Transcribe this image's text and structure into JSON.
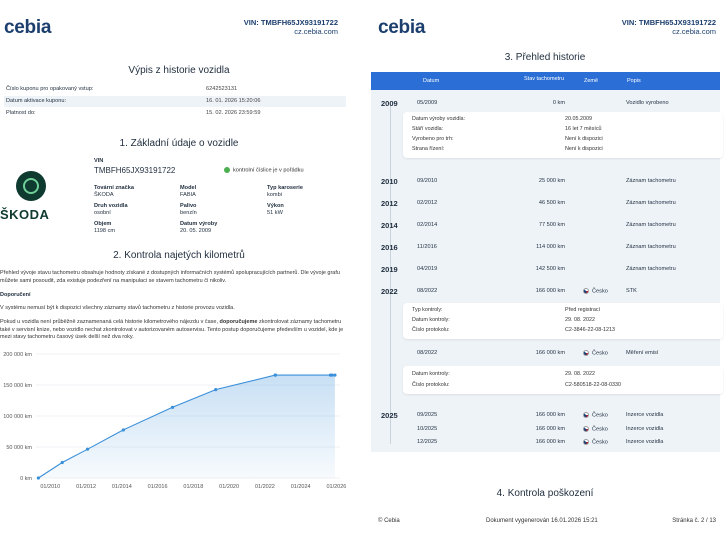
{
  "page1": {
    "logo": "cebia",
    "vin_header": "VIN: TMBFH65JX93191722",
    "url": "cz.cebia.com",
    "title": "Výpis z historie vozidla",
    "info_rows": [
      {
        "label": "Číslo kuponu pro opakovaný vstup:",
        "value": "6242523131"
      },
      {
        "label": "Datum aktivace kuponu:",
        "value": "16. 01. 2026 15:20:06"
      },
      {
        "label": "Platnost do:",
        "value": "15. 02. 2026 23:59:59"
      }
    ],
    "section1_title": "1. Základní údaje o vozidle",
    "vin_label": "VIN",
    "vin_value": "TMBFH65JX93191722",
    "vin_check": "kontrolní číslice je v pořádku",
    "logo_word": "ŠKODA",
    "details": {
      "brand_label": "Tovární značka",
      "brand": "ŠKODA",
      "model_label": "Model",
      "model": "FABIA",
      "body_label": "Typ karoserie",
      "body": "kombi",
      "kind_label": "Druh vozidla",
      "kind": "osobní",
      "fuel_label": "Palivo",
      "fuel": "benzín",
      "power_label": "Výkon",
      "power": "51 kW",
      "volume_label": "Objem",
      "volume": "1198 cm",
      "made_label": "Datum výroby",
      "made": "20. 05. 2009"
    },
    "section2_title": "2. Kontrola najetých kilometrů",
    "para1": "Přehled vývoje stavu tachometru obsahuje hodnoty získané z dostupných informačních systémů spolupracujících partnerů. Dle vývoje grafu můžete sami posoudit, zda existuje podezření na manipulaci se stavem tachometru či nikoliv.",
    "para2_title": "Doporučení",
    "para2": "V systému nemusí být k dispozici všechny záznamy stavů tachometru z historie provozu vozidla.",
    "para3a": "Pokud u vozidla není průběžně zaznamenaná celá historie kilometrového nájezdu v čase,",
    "para3b": "doporučujeme",
    "para3c": "zkontrolovat záznamy tachometru také v servisní knize, nebo vozidlo nechat zkontrolovat v autorizovaném autoservisu. Tento postup doporučujeme především u vozidel, kde je mezi stavy tachometru časový úsek delší než dva roky."
  },
  "chart_data": {
    "type": "area",
    "title": "",
    "xlabel": "",
    "ylabel": "",
    "x": [
      "05/2009",
      "09/2010",
      "02/2012",
      "02/2014",
      "11/2016",
      "04/2019",
      "08/2022",
      "08/2022",
      "09/2025",
      "10/2025",
      "12/2025"
    ],
    "series": [
      {
        "name": "",
        "values": [
          0,
          25000,
          46500,
          77500,
          114000,
          142500,
          166000,
          166000,
          166000,
          166000,
          166000
        ]
      }
    ],
    "x_ticks": [
      "01/2010",
      "01/2012",
      "01/2014",
      "01/2016",
      "01/2018",
      "01/2020",
      "01/2022",
      "01/2024",
      "01/2026"
    ],
    "y_ticks": [
      "0 km",
      "50 000 km",
      "100 000 km",
      "150 000 km",
      "200 000 km"
    ],
    "ylim": [
      0,
      200000
    ],
    "grid": true,
    "color": "#3a8fd9"
  },
  "page2": {
    "logo": "cebia",
    "vin_header": "VIN: TMBFH65JX93191722",
    "url": "cz.cebia.com",
    "title": "3. Přehled historie",
    "columns": [
      "Datum",
      "Stav tachometru",
      "Země",
      "Popis"
    ],
    "entries": [
      {
        "year": "2009",
        "date": "05/2009",
        "km": "0 km",
        "country": "",
        "desc": "Vozidlo vyrobeno"
      },
      {
        "year": "2010",
        "date": "09/2010",
        "km": "25 000 km",
        "country": "",
        "desc": "Záznam tachometru"
      },
      {
        "year": "2012",
        "date": "02/2012",
        "km": "46 500 km",
        "country": "",
        "desc": "Záznam tachometru"
      },
      {
        "year": "2014",
        "date": "02/2014",
        "km": "77 500 km",
        "country": "",
        "desc": "Záznam tachometru"
      },
      {
        "year": "2016",
        "date": "11/2016",
        "km": "114 000 km",
        "country": "",
        "desc": "Záznam tachometru"
      },
      {
        "year": "2019",
        "date": "04/2019",
        "km": "142 500 km",
        "country": "",
        "desc": "Záznam tachometru"
      },
      {
        "year": "2022",
        "date": "08/2022",
        "km": "166 000 km",
        "country": "Česko",
        "desc": "STK"
      },
      {
        "year": "",
        "date": "08/2022",
        "km": "166 000 km",
        "country": "Česko",
        "desc": "Měření emisí"
      },
      {
        "year": "2025",
        "date": "09/2025",
        "km": "166 000 km",
        "country": "Česko",
        "desc": "Inzerce vozidla"
      },
      {
        "year": "",
        "date": "10/2025",
        "km": "166 000 km",
        "country": "Česko",
        "desc": "Inzerce vozidla"
      },
      {
        "year": "",
        "date": "12/2025",
        "km": "166 000 km",
        "country": "Česko",
        "desc": "Inzerce vozidla"
      }
    ],
    "card1": [
      {
        "k": "Datum výroby vozidla:",
        "v": "20.05.2009"
      },
      {
        "k": "Stáří vozidla:",
        "v": "16 let 7 měsíců"
      },
      {
        "k": "Vyrobeno pro trh:",
        "v": "Není k dispozici"
      },
      {
        "k": "Strana řízení:",
        "v": "Není k dispozici"
      }
    ],
    "card2": [
      {
        "k": "Typ kontroly:",
        "v": "Před registrací"
      },
      {
        "k": "Datum kontroly:",
        "v": "29. 08. 2022"
      },
      {
        "k": "Číslo protokolu:",
        "v": "C2-3846-22-08-1213"
      }
    ],
    "card3": [
      {
        "k": "Datum kontroly:",
        "v": "29. 08. 2022"
      },
      {
        "k": "Číslo protokolu:",
        "v": "C2-580518-22-08-0330"
      }
    ],
    "section4_title": "4. Kontrola poškození",
    "footer_left": "© Cebia",
    "footer_mid": "Dokument vygenerován 16.01.2026 15:21",
    "footer_right": "Stránka č. 2 / 13"
  }
}
